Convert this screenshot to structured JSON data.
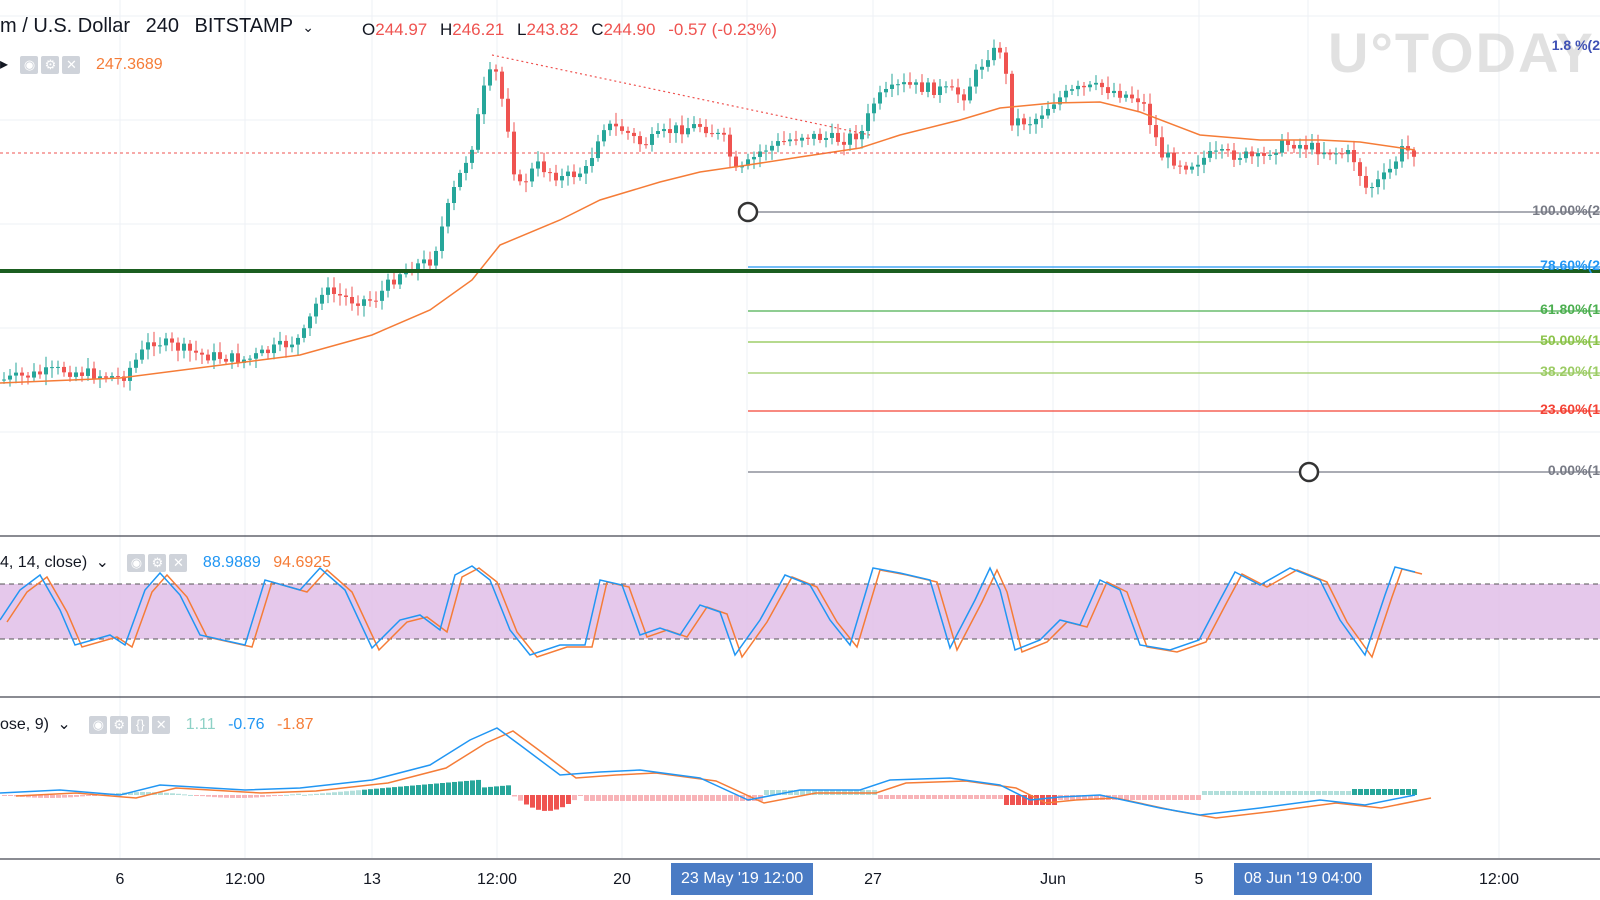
{
  "header": {
    "symbol": "m / U.S. Dollar",
    "interval": "240",
    "exchange": "BITSTAMP",
    "open_label": "O",
    "open": "244.97",
    "high_label": "H",
    "high": "246.21",
    "low_label": "L",
    "low": "243.82",
    "close_label": "C",
    "close": "244.90",
    "change": "-0.57 (-0.23%)",
    "ma_value": "247.3689"
  },
  "watermark": "U°TODAY",
  "fib_levels": [
    {
      "label": "100.00%(2",
      "color": "#787b86"
    },
    {
      "label": "78.60%(2",
      "color": "#2196f3"
    },
    {
      "label": "61.80%(1",
      "color": "#4caf50"
    },
    {
      "label": "50.00%(1",
      "color": "#8bc34a"
    },
    {
      "label": "38.20%(1",
      "color": "#9ccc65"
    },
    {
      "label": "23.60%(1",
      "color": "#f44336"
    },
    {
      "label": "0.00%(1",
      "color": "#787b86"
    }
  ],
  "fib_top_label": "1.8 %(2",
  "stoch": {
    "params": "4, 14, close)",
    "k": "88.9889",
    "d": "94.6925"
  },
  "macd": {
    "params": "ose, 9)",
    "hist": "1.11",
    "macd": "-0.76",
    "signal": "-1.87"
  },
  "x_axis": {
    "labels": [
      "6",
      "12:00",
      "13",
      "12:00",
      "20",
      "27",
      "Jun",
      "5",
      "12:00"
    ],
    "highlight_left": "23 May '19   12:00",
    "highlight_right": "08 Jun '19   04:00"
  },
  "colors": {
    "up": "#26a69a",
    "down": "#ef5350",
    "ma": "#f57c37",
    "support": "#1b5e20"
  }
}
